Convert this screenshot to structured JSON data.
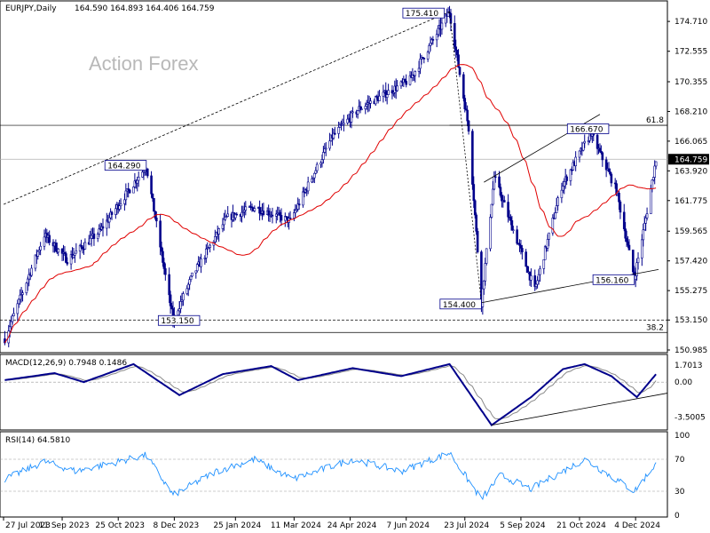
{
  "header": {
    "symbol_label": "EURJPY,Daily",
    "ohlc_label": "164.590 164.893 164.406 164.759"
  },
  "watermark": "Action Forex",
  "colors": {
    "candle": "#00008b",
    "ma": "#e00000",
    "macd_line": "#00008b",
    "macd_signal": "#8a8a8a",
    "rsi": "#1e90ff",
    "trend_line": "#000000",
    "price_tag_bg": "#000000",
    "price_tag_fg": "#ffffff",
    "annotation_border": "#00008b"
  },
  "chart_data": [
    {
      "type": "candlestick",
      "name": "price",
      "symbol": "EURJPY",
      "timeframe": "Daily",
      "ylim": [
        150.985,
        176.0
      ],
      "y_ticks": [
        "174.710",
        "172.555",
        "170.355",
        "168.210",
        "166.065",
        "163.920",
        "161.775",
        "159.565",
        "157.420",
        "155.275",
        "153.150",
        "150.985"
      ],
      "x_ticks": [
        "27 Jul 2023",
        "11 Sep 2023",
        "25 Oct 2023",
        "8 Dec 2023",
        "25 Jan 2024",
        "11 Mar 2024",
        "24 Apr 2024",
        "7 Jun 2024",
        "23 Jul 2024",
        "5 Sep 2024",
        "21 Oct 2024",
        "4 Dec 2024"
      ],
      "last_price": "164.759",
      "key_points": [
        {
          "date": "2023-07-28",
          "value": 151.8
        },
        {
          "date": "2023-08-28",
          "value": 159.3
        },
        {
          "date": "2023-09-15",
          "value": 157.5
        },
        {
          "date": "2023-10-10",
          "value": 159.5
        },
        {
          "date": "2023-11-16",
          "value": 164.29
        },
        {
          "date": "2023-12-07",
          "value": 153.15
        },
        {
          "date": "2023-12-22",
          "value": 156.3
        },
        {
          "date": "2024-01-18",
          "value": 160.5
        },
        {
          "date": "2024-02-09",
          "value": 161.3
        },
        {
          "date": "2024-03-08",
          "value": 160.3
        },
        {
          "date": "2024-04-10",
          "value": 166.4
        },
        {
          "date": "2024-05-01",
          "value": 168.4
        },
        {
          "date": "2024-06-10",
          "value": 170.5
        },
        {
          "date": "2024-07-11",
          "value": 175.41
        },
        {
          "date": "2024-07-26",
          "value": 167.0
        },
        {
          "date": "2024-08-05",
          "value": 154.4
        },
        {
          "date": "2024-08-15",
          "value": 163.5
        },
        {
          "date": "2024-09-16",
          "value": 155.3
        },
        {
          "date": "2024-10-07",
          "value": 162.8
        },
        {
          "date": "2024-10-30",
          "value": 166.67
        },
        {
          "date": "2024-11-19",
          "value": 162.5
        },
        {
          "date": "2024-12-03",
          "value": 156.16
        },
        {
          "date": "2024-12-12",
          "value": 160.5
        },
        {
          "date": "2024-12-20",
          "value": 164.759
        }
      ],
      "annotations": [
        {
          "text": "175.410",
          "date": "2024-07-11",
          "value": 175.41
        },
        {
          "text": "164.290",
          "date": "2023-11-16",
          "value": 164.29
        },
        {
          "text": "166.670",
          "date": "2024-10-30",
          "value": 166.67
        },
        {
          "text": "154.400",
          "date": "2024-08-05",
          "value": 154.4
        },
        {
          "text": "156.160",
          "date": "2024-12-03",
          "value": 156.16
        },
        {
          "text": "153.150",
          "date": "2023-12-07",
          "value": 153.15
        }
      ],
      "fib_levels": [
        {
          "label": "61.8",
          "value": 167.21
        },
        {
          "label": "38.2",
          "value": 152.25
        }
      ],
      "horizontal_levels": [
        {
          "label": "153.150",
          "value": 153.15
        }
      ]
    },
    {
      "type": "line",
      "name": "macd",
      "title": "MACD(12,26,9) 0.7948 0.1486",
      "ylim": [
        -4.6,
        2.5
      ],
      "y_ticks": [
        "1.7013",
        "0.00",
        "-3.5005"
      ],
      "key_points": [
        {
          "date": "2023-07-28",
          "value": 0.2
        },
        {
          "date": "2023-09-05",
          "value": 0.9
        },
        {
          "date": "2023-09-28",
          "value": 0.0
        },
        {
          "date": "2023-11-06",
          "value": 1.8
        },
        {
          "date": "2023-12-12",
          "value": -1.3
        },
        {
          "date": "2024-01-15",
          "value": 0.8
        },
        {
          "date": "2024-02-22",
          "value": 1.6
        },
        {
          "date": "2024-03-14",
          "value": 0.2
        },
        {
          "date": "2024-04-26",
          "value": 1.4
        },
        {
          "date": "2024-06-03",
          "value": 0.6
        },
        {
          "date": "2024-07-11",
          "value": 1.8
        },
        {
          "date": "2024-08-13",
          "value": -4.3
        },
        {
          "date": "2024-09-13",
          "value": -1.5
        },
        {
          "date": "2024-10-08",
          "value": 1.3
        },
        {
          "date": "2024-10-25",
          "value": 1.8
        },
        {
          "date": "2024-11-15",
          "value": 0.6
        },
        {
          "date": "2024-12-05",
          "value": -1.5
        },
        {
          "date": "2024-12-20",
          "value": 0.79
        }
      ]
    },
    {
      "type": "line",
      "name": "rsi",
      "title": "RSI(14) 64.5810",
      "ylim": [
        0,
        100
      ],
      "y_ticks": [
        "100",
        "70",
        "30",
        "0"
      ],
      "levels": [
        70,
        30
      ],
      "key_points": [
        {
          "date": "2023-07-28",
          "value": 45
        },
        {
          "date": "2023-08-28",
          "value": 67
        },
        {
          "date": "2023-09-22",
          "value": 55
        },
        {
          "date": "2023-11-16",
          "value": 75
        },
        {
          "date": "2023-12-07",
          "value": 25
        },
        {
          "date": "2024-01-10",
          "value": 55
        },
        {
          "date": "2024-02-09",
          "value": 70
        },
        {
          "date": "2024-03-10",
          "value": 45
        },
        {
          "date": "2024-04-26",
          "value": 70
        },
        {
          "date": "2024-06-03",
          "value": 55
        },
        {
          "date": "2024-07-11",
          "value": 78
        },
        {
          "date": "2024-08-05",
          "value": 20
        },
        {
          "date": "2024-08-20",
          "value": 50
        },
        {
          "date": "2024-09-13",
          "value": 33
        },
        {
          "date": "2024-10-25",
          "value": 70
        },
        {
          "date": "2024-12-03",
          "value": 30
        },
        {
          "date": "2024-12-20",
          "value": 64.581
        }
      ]
    }
  ]
}
